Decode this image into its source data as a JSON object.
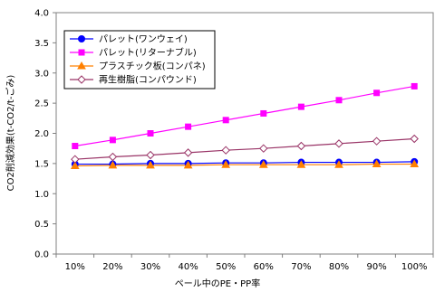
{
  "chart_data": {
    "type": "line",
    "xlabel": "ペール中のPE・PP率",
    "ylabel": "CO2削減効果(t-CO2/t-ごみ)",
    "categories": [
      "10%",
      "20%",
      "30%",
      "40%",
      "50%",
      "60%",
      "70%",
      "80%",
      "90%",
      "100%"
    ],
    "ylim": [
      0.0,
      4.0
    ],
    "yticks": [
      "0.0",
      "0.5",
      "1.0",
      "1.5",
      "2.0",
      "2.5",
      "3.0",
      "3.5",
      "4.0"
    ],
    "grid": "none",
    "legend_position": "top-left",
    "series": [
      {
        "name": "パレット(ワンウェイ)",
        "color": "#0000ff",
        "marker": "circle",
        "values": [
          1.49,
          1.49,
          1.5,
          1.5,
          1.51,
          1.51,
          1.52,
          1.52,
          1.52,
          1.53
        ]
      },
      {
        "name": "パレット(リターナブル)",
        "color": "#ff00ff",
        "marker": "square",
        "values": [
          1.79,
          1.89,
          2.0,
          2.11,
          2.22,
          2.33,
          2.44,
          2.55,
          2.67,
          2.78
        ]
      },
      {
        "name": "プラスチック板(コンパネ)",
        "color": "#ff8000",
        "marker": "triangle",
        "values": [
          1.46,
          1.47,
          1.47,
          1.47,
          1.48,
          1.48,
          1.48,
          1.48,
          1.49,
          1.49
        ]
      },
      {
        "name": "再生樹脂(コンパウンド)",
        "color": "#993366",
        "marker": "diamond-open",
        "values": [
          1.57,
          1.61,
          1.64,
          1.68,
          1.72,
          1.75,
          1.79,
          1.83,
          1.87,
          1.91
        ]
      }
    ]
  }
}
